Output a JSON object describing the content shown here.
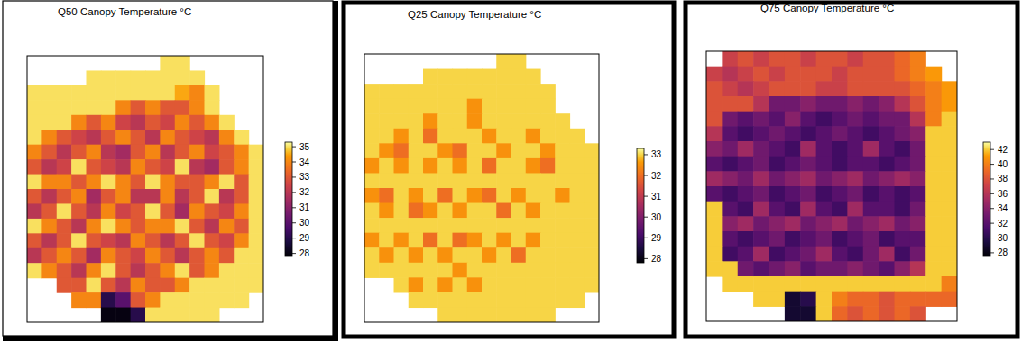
{
  "chart_data": [
    {
      "type": "heatmap",
      "title": "Q50 Canopy Temperature °C",
      "color_range": [
        27.8,
        35.3
      ],
      "color_ticks": [
        28,
        29,
        30,
        31,
        32,
        33,
        34,
        35
      ],
      "cells": [
        [
          null,
          null,
          null,
          null,
          null,
          null,
          null,
          null,
          null,
          35,
          35,
          null,
          null,
          null,
          null,
          null
        ],
        [
          null,
          null,
          null,
          null,
          35,
          35,
          35,
          35,
          35,
          35,
          35,
          35,
          null,
          null,
          null,
          null
        ],
        [
          35,
          35,
          35,
          35,
          35,
          35,
          35,
          35,
          35,
          35,
          34.5,
          34,
          35,
          null,
          null,
          null
        ],
        [
          35,
          35,
          35,
          35,
          35,
          35,
          34,
          33,
          34,
          33,
          33,
          34,
          35,
          null,
          null,
          null
        ],
        [
          35,
          35,
          35,
          34,
          33,
          34,
          32.5,
          32,
          33,
          32.5,
          34,
          33,
          34,
          35,
          null,
          null
        ],
        [
          35,
          34,
          33,
          32.5,
          32,
          33,
          34,
          33,
          32,
          34,
          33,
          32.5,
          32,
          34,
          35,
          null
        ],
        [
          34,
          33,
          32,
          33,
          34,
          32,
          31.5,
          33,
          34,
          32,
          33,
          34,
          32.5,
          33,
          34,
          35
        ],
        [
          33,
          32,
          32.5,
          35,
          33,
          32.5,
          32,
          34,
          33,
          32.5,
          35,
          32,
          31.5,
          33,
          34,
          35
        ],
        [
          35,
          34,
          34,
          33,
          34,
          35,
          34,
          33,
          35,
          34,
          33,
          33,
          34,
          35,
          33,
          35
        ],
        [
          33,
          32,
          33,
          34,
          31.5,
          33,
          34,
          32,
          32,
          34,
          32,
          33,
          35,
          32,
          33,
          35
        ],
        [
          32,
          33,
          35,
          33,
          32,
          34,
          32.5,
          33,
          35,
          33,
          31.5,
          34,
          33,
          32.5,
          34,
          35
        ],
        [
          35,
          34,
          33,
          32,
          34,
          35,
          34,
          33,
          34,
          34,
          35,
          33,
          32,
          34,
          33,
          35
        ],
        [
          33,
          32,
          33,
          35,
          33,
          32.5,
          32,
          34,
          33,
          32,
          33,
          35,
          33,
          32.5,
          34,
          35
        ],
        [
          32,
          33,
          34,
          33,
          31.5,
          34,
          33,
          32.5,
          34,
          33,
          32,
          33,
          34,
          33,
          35,
          35
        ],
        [
          35,
          34,
          33,
          32,
          34,
          35,
          33,
          32,
          33,
          34,
          35,
          33,
          34,
          35,
          35,
          35
        ],
        [
          null,
          null,
          33,
          33,
          35,
          33,
          32,
          34,
          33,
          33,
          34,
          35,
          35,
          35,
          35,
          35
        ],
        [
          null,
          null,
          null,
          34,
          34,
          29,
          30,
          33,
          34,
          35,
          35,
          35,
          35,
          35,
          35,
          null
        ],
        [
          null,
          null,
          null,
          null,
          null,
          28,
          28,
          29,
          35,
          35,
          35,
          35,
          35,
          null,
          null,
          null
        ]
      ]
    },
    {
      "type": "heatmap",
      "title": "Q25 Canopy Temperature °C",
      "color_range": [
        27.8,
        33.3
      ],
      "color_ticks": [
        28,
        29,
        30,
        31,
        32,
        33
      ],
      "cells": [
        [
          null,
          null,
          null,
          null,
          null,
          null,
          null,
          null,
          null,
          33,
          33,
          null,
          null,
          null,
          null,
          null
        ],
        [
          null,
          null,
          null,
          null,
          33,
          33,
          33,
          33,
          33,
          33,
          33,
          33,
          null,
          null,
          null,
          null
        ],
        [
          33,
          33,
          33,
          33,
          33,
          33,
          33,
          33,
          33,
          33,
          33,
          33,
          33,
          null,
          null,
          null
        ],
        [
          33,
          33,
          33,
          33,
          33,
          33,
          33,
          32.5,
          33,
          33,
          33,
          33,
          33,
          null,
          null,
          null
        ],
        [
          33,
          33,
          33,
          33,
          32.5,
          33,
          33,
          32.5,
          33,
          33,
          33,
          33,
          33,
          33,
          null,
          null
        ],
        [
          33,
          33,
          32.5,
          33,
          32,
          33,
          33,
          33,
          32.5,
          33,
          33,
          32.5,
          33,
          33,
          33,
          null
        ],
        [
          33,
          32.5,
          32,
          33,
          33,
          32.5,
          32,
          33,
          33,
          32.5,
          33,
          33,
          32.5,
          33,
          33,
          33
        ],
        [
          32.5,
          33,
          32.5,
          33,
          32.5,
          33,
          32.5,
          33,
          32,
          33,
          33,
          32.5,
          32,
          33,
          33,
          33
        ],
        [
          33,
          33,
          33,
          33,
          33,
          33,
          33,
          33,
          33,
          33,
          33,
          33,
          33,
          33,
          33,
          33
        ],
        [
          32.5,
          32,
          33,
          32.5,
          33,
          32,
          33,
          32.5,
          32,
          33,
          32.5,
          33,
          33,
          32.5,
          33,
          33
        ],
        [
          33,
          32.5,
          33,
          32,
          32.5,
          33,
          32.5,
          33,
          33,
          32,
          33,
          32.5,
          33,
          33,
          33,
          33
        ],
        [
          33,
          33,
          33,
          33,
          33,
          33,
          33,
          33,
          33,
          33,
          33,
          33,
          33,
          33,
          33,
          33
        ],
        [
          32.5,
          33,
          32.5,
          33,
          32,
          33,
          32,
          32.5,
          33,
          32.5,
          33,
          32.5,
          33,
          33,
          33,
          33
        ],
        [
          33,
          32.5,
          33,
          32.5,
          33,
          32.5,
          33,
          33,
          32.5,
          33,
          32,
          33,
          33,
          33,
          33,
          33
        ],
        [
          33,
          33,
          33,
          33,
          33,
          33,
          32.5,
          33,
          33,
          33,
          33,
          33,
          33,
          33,
          33,
          33
        ],
        [
          null,
          null,
          33,
          32.5,
          33,
          32.5,
          33,
          32.5,
          33,
          33,
          33,
          33,
          33,
          33,
          33,
          33
        ],
        [
          null,
          null,
          null,
          33,
          33,
          33,
          33,
          33,
          33,
          33,
          33,
          33,
          33,
          33,
          33,
          null
        ],
        [
          null,
          null,
          null,
          null,
          null,
          33,
          33,
          33,
          33,
          33,
          33,
          33,
          33,
          null,
          null,
          null
        ]
      ]
    },
    {
      "type": "heatmap",
      "title": "Q75 Canopy Temperature °C",
      "color_range": [
        27.5,
        43
      ],
      "color_ticks": [
        28,
        30,
        32,
        34,
        36,
        38,
        40,
        42
      ],
      "cells": [
        [
          null,
          37,
          38,
          37,
          38,
          38,
          37,
          38,
          38,
          37,
          38,
          38,
          39,
          40,
          null,
          null
        ],
        [
          37,
          36,
          37,
          38,
          37,
          38,
          38,
          38,
          37,
          38,
          38,
          38,
          39,
          40,
          41,
          null
        ],
        [
          38,
          37,
          36,
          37,
          38,
          38,
          38,
          37,
          37,
          38,
          38,
          38,
          38,
          39,
          40,
          41
        ],
        [
          38,
          38,
          38,
          36,
          33,
          33,
          34,
          33,
          33,
          34,
          33,
          34,
          36,
          38,
          40,
          41
        ],
        [
          38,
          33,
          32,
          33,
          32,
          34,
          32,
          31,
          32,
          33,
          32,
          33,
          33,
          36,
          40,
          42
        ],
        [
          36,
          32,
          31,
          32,
          33,
          32,
          31,
          32,
          33,
          32,
          31,
          32,
          33,
          34,
          42,
          42
        ],
        [
          34,
          33,
          35,
          33,
          32,
          31,
          35,
          32,
          31,
          32,
          35,
          32,
          31,
          33,
          42,
          42
        ],
        [
          32,
          31,
          32,
          33,
          31,
          32,
          33,
          32,
          31,
          32,
          32,
          31,
          32,
          33,
          42,
          42
        ],
        [
          35,
          34,
          33,
          35,
          33,
          34,
          35,
          33,
          34,
          35,
          33,
          34,
          35,
          34,
          42,
          42
        ],
        [
          32,
          31,
          32,
          33,
          31,
          32,
          33,
          31,
          32,
          33,
          31,
          32,
          31,
          32,
          42,
          42
        ],
        [
          42,
          32,
          31,
          35,
          32,
          31,
          35,
          32,
          31,
          35,
          32,
          32,
          31,
          33,
          42,
          42
        ],
        [
          42,
          34,
          35,
          33,
          34,
          35,
          33,
          34,
          35,
          33,
          34,
          35,
          33,
          34,
          42,
          42
        ],
        [
          42,
          32,
          31,
          32,
          33,
          31,
          32,
          33,
          31,
          32,
          33,
          31,
          32,
          32,
          42,
          42
        ],
        [
          42,
          31,
          32,
          35,
          31,
          32,
          33,
          35,
          32,
          31,
          33,
          35,
          31,
          33,
          42,
          42
        ],
        [
          42,
          42,
          33,
          32,
          33,
          34,
          32,
          33,
          33,
          34,
          33,
          32,
          34,
          36,
          42,
          42
        ],
        [
          null,
          42,
          42,
          42,
          42,
          42,
          42,
          42,
          42,
          42,
          42,
          42,
          42,
          42,
          42,
          40
        ],
        [
          null,
          null,
          null,
          42,
          42,
          29,
          30,
          42,
          40,
          39,
          39,
          38,
          39,
          39,
          39,
          39
        ],
        [
          null,
          null,
          null,
          null,
          null,
          29,
          29,
          42,
          39,
          38,
          39,
          38,
          39,
          38,
          null,
          null
        ]
      ]
    }
  ]
}
